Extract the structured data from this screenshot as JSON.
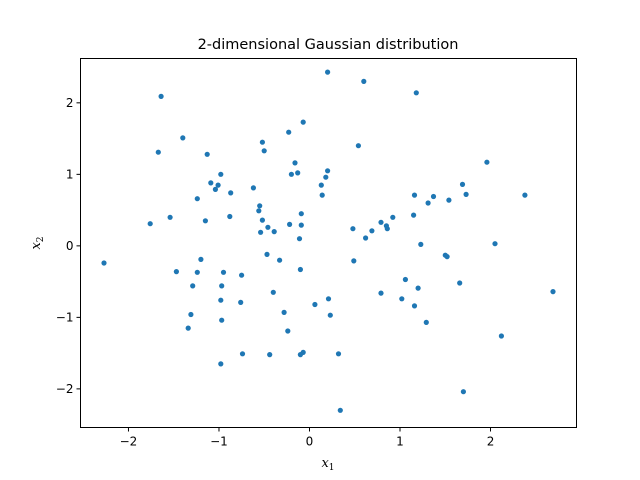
{
  "chart_data": {
    "type": "scatter",
    "title": "2-dimensional Gaussian distribution",
    "xlabel": "x",
    "xlabel_sub": "1",
    "ylabel": "x",
    "ylabel_sub": "2",
    "xlim": [
      -2.53,
      2.95
    ],
    "ylim": [
      -2.54,
      2.62
    ],
    "xticks": [
      -2,
      -1,
      0,
      1,
      2
    ],
    "yticks": [
      -2,
      -1,
      0,
      1,
      2
    ],
    "xtick_labels": [
      "−2",
      "−1",
      "0",
      "1",
      "2"
    ],
    "ytick_labels": [
      "−2",
      "−1",
      "0",
      "1",
      "2"
    ],
    "grid": false,
    "marker_color": "#1f77b4",
    "points": [
      [
        0.2,
        2.43
      ],
      [
        0.6,
        2.3
      ],
      [
        1.18,
        2.14
      ],
      [
        -1.64,
        2.09
      ],
      [
        -0.07,
        1.73
      ],
      [
        -1.4,
        1.51
      ],
      [
        -0.23,
        1.59
      ],
      [
        -0.52,
        1.45
      ],
      [
        0.54,
        1.4
      ],
      [
        -0.5,
        1.33
      ],
      [
        -1.67,
        1.31
      ],
      [
        -1.13,
        1.28
      ],
      [
        1.96,
        1.17
      ],
      [
        -0.16,
        1.16
      ],
      [
        0.2,
        1.05
      ],
      [
        -0.13,
        1.02
      ],
      [
        -0.2,
        1.0
      ],
      [
        -0.98,
        1.0
      ],
      [
        0.18,
        0.96
      ],
      [
        -1.09,
        0.88
      ],
      [
        -1.01,
        0.85
      ],
      [
        1.69,
        0.86
      ],
      [
        0.13,
        0.85
      ],
      [
        -0.62,
        0.81
      ],
      [
        -1.04,
        0.79
      ],
      [
        -0.87,
        0.74
      ],
      [
        1.73,
        0.72
      ],
      [
        2.38,
        0.71
      ],
      [
        0.14,
        0.71
      ],
      [
        1.16,
        0.71
      ],
      [
        1.37,
        0.69
      ],
      [
        -1.24,
        0.66
      ],
      [
        1.54,
        0.64
      ],
      [
        1.31,
        0.6
      ],
      [
        -0.55,
        0.56
      ],
      [
        -0.56,
        0.49
      ],
      [
        -0.09,
        0.45
      ],
      [
        1.15,
        0.43
      ],
      [
        -0.88,
        0.41
      ],
      [
        -1.54,
        0.4
      ],
      [
        0.92,
        0.4
      ],
      [
        -0.52,
        0.36
      ],
      [
        -1.15,
        0.35
      ],
      [
        0.79,
        0.33
      ],
      [
        -1.76,
        0.31
      ],
      [
        -0.22,
        0.3
      ],
      [
        -0.09,
        0.29
      ],
      [
        0.85,
        0.28
      ],
      [
        -0.46,
        0.26
      ],
      [
        0.86,
        0.24
      ],
      [
        0.48,
        0.24
      ],
      [
        0.69,
        0.21
      ],
      [
        -0.39,
        0.2
      ],
      [
        -0.54,
        0.19
      ],
      [
        0.62,
        0.11
      ],
      [
        -0.11,
        0.1
      ],
      [
        1.23,
        0.02
      ],
      [
        2.05,
        0.03
      ],
      [
        -0.47,
        -0.12
      ],
      [
        1.5,
        -0.13
      ],
      [
        1.52,
        -0.15
      ],
      [
        -1.2,
        -0.19
      ],
      [
        -0.33,
        -0.2
      ],
      [
        0.49,
        -0.21
      ],
      [
        -2.27,
        -0.24
      ],
      [
        -0.1,
        -0.33
      ],
      [
        -1.47,
        -0.36
      ],
      [
        -1.24,
        -0.37
      ],
      [
        -0.95,
        -0.37
      ],
      [
        -0.75,
        -0.41
      ],
      [
        1.06,
        -0.47
      ],
      [
        1.66,
        -0.52
      ],
      [
        -1.29,
        -0.56
      ],
      [
        -0.97,
        -0.56
      ],
      [
        1.2,
        -0.59
      ],
      [
        2.69,
        -0.64
      ],
      [
        -0.4,
        -0.65
      ],
      [
        0.79,
        -0.66
      ],
      [
        -0.98,
        -0.76
      ],
      [
        0.21,
        -0.74
      ],
      [
        1.02,
        -0.74
      ],
      [
        -0.76,
        -0.79
      ],
      [
        0.06,
        -0.82
      ],
      [
        1.16,
        -0.84
      ],
      [
        -0.28,
        -0.93
      ],
      [
        -1.31,
        -0.96
      ],
      [
        0.23,
        -0.97
      ],
      [
        -0.97,
        -1.04
      ],
      [
        1.29,
        -1.07
      ],
      [
        -1.34,
        -1.15
      ],
      [
        -0.24,
        -1.19
      ],
      [
        2.12,
        -1.26
      ],
      [
        -0.74,
        -1.51
      ],
      [
        0.32,
        -1.51
      ],
      [
        -0.44,
        -1.52
      ],
      [
        -0.07,
        -1.49
      ],
      [
        -0.1,
        -1.52
      ],
      [
        -0.98,
        -1.65
      ],
      [
        1.7,
        -2.04
      ],
      [
        0.34,
        -2.3
      ]
    ]
  }
}
